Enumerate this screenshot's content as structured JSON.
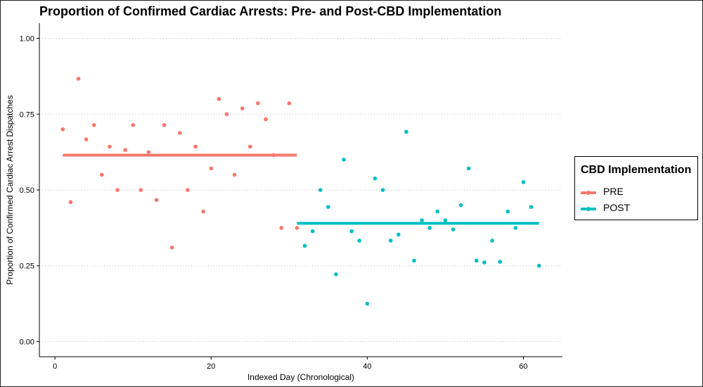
{
  "chart_data": {
    "type": "scatter",
    "title": "Proportion of Confirmed Cardiac Arrests: Pre- and Post-CBD Implementation",
    "xlabel": "Indexed Day (Chronological)",
    "ylabel": "Proportion of Confirmed Cardiac Arrest Dispatches",
    "xlim": [
      -2,
      65
    ],
    "ylim": [
      -0.05,
      1.05
    ],
    "x_ticks": [
      0,
      20,
      40,
      60
    ],
    "y_ticks": [
      0.0,
      0.25,
      0.5,
      0.75,
      1.0
    ],
    "x_tick_labels": [
      "0",
      "20",
      "40",
      "60"
    ],
    "y_tick_labels": [
      "0.00",
      "0.25",
      "0.50",
      "0.75",
      "1.00"
    ],
    "grid": "horizontal dotted",
    "legend": {
      "title": "CBD Implementation",
      "position": "right",
      "entries": [
        "PRE",
        "POST"
      ]
    },
    "series": [
      {
        "name": "PRE",
        "color": "#f8766d",
        "mean": 0.615,
        "mean_x_range": [
          1,
          31
        ],
        "x": [
          1,
          2,
          3,
          4,
          5,
          6,
          7,
          8,
          9,
          10,
          11,
          12,
          13,
          14,
          15,
          16,
          17,
          18,
          19,
          20,
          21,
          22,
          23,
          24,
          25,
          26,
          27,
          28,
          29,
          30,
          31
        ],
        "y": [
          0.7,
          0.46,
          0.867,
          0.667,
          0.714,
          0.55,
          0.643,
          0.5,
          0.632,
          0.714,
          0.5,
          0.625,
          0.467,
          0.714,
          0.31,
          0.688,
          0.5,
          0.643,
          0.429,
          0.571,
          0.8,
          0.75,
          0.55,
          0.769,
          0.643,
          0.786,
          0.733,
          0.615,
          0.375,
          0.786,
          0.375
        ]
      },
      {
        "name": "POST",
        "color": "#00bfc4",
        "mean": 0.39,
        "mean_x_range": [
          31,
          62
        ],
        "x": [
          32,
          33,
          34,
          35,
          36,
          37,
          38,
          39,
          40,
          41,
          42,
          43,
          44,
          45,
          46,
          47,
          48,
          49,
          50,
          51,
          52,
          53,
          54,
          55,
          56,
          57,
          58,
          59,
          60,
          61,
          62
        ],
        "y": [
          0.316,
          0.364,
          0.5,
          0.444,
          0.222,
          0.6,
          0.364,
          0.333,
          0.125,
          0.538,
          0.5,
          0.333,
          0.353,
          0.692,
          0.267,
          0.4,
          0.375,
          0.429,
          0.4,
          0.37,
          0.45,
          0.571,
          0.267,
          0.261,
          0.333,
          0.263,
          0.429,
          0.375,
          0.526,
          0.444,
          0.25
        ]
      }
    ]
  }
}
